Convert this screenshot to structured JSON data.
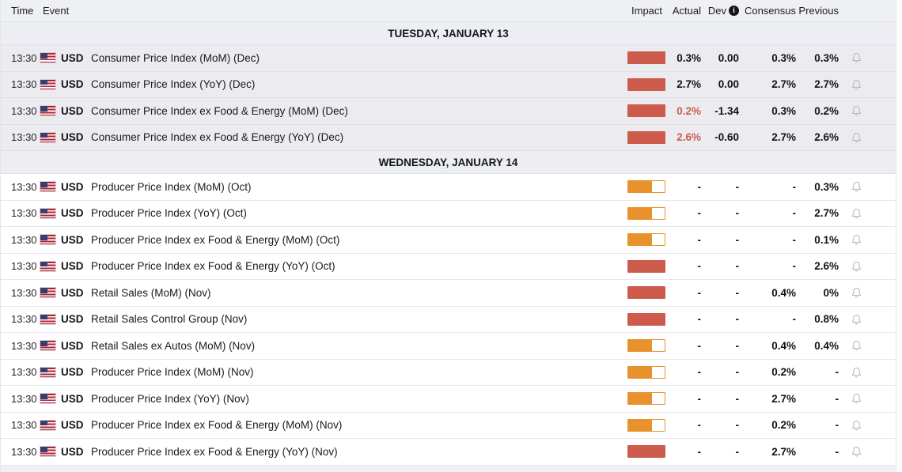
{
  "header": {
    "time": "Time",
    "event": "Event",
    "impact": "Impact",
    "actual": "Actual",
    "dev": "Dev",
    "consensus": "Consensus",
    "previous": "Previous",
    "info_icon": "i"
  },
  "colors": {
    "impact_high": "#cd5b4c",
    "impact_medium": "#e8922d",
    "deviation_text": "#cb5f50",
    "past_row_bg": "#ebebf0",
    "date_row_bg": "#edeef4",
    "header_bg": "#eff0f3"
  },
  "icons": {
    "flag": "us-flag-icon",
    "bell": "bell-icon",
    "info": "info-icon"
  },
  "sections": [
    {
      "date_label": "TUESDAY, JANUARY 13",
      "past": true,
      "rows": [
        {
          "time": "13:30",
          "currency": "USD",
          "event": "Consumer Price Index (MoM) (Dec)",
          "impact": "high",
          "actual": "0.3%",
          "actual_highlight": false,
          "dev": "0.00",
          "consensus": "0.3%",
          "previous": "0.3%"
        },
        {
          "time": "13:30",
          "currency": "USD",
          "event": "Consumer Price Index (YoY) (Dec)",
          "impact": "high",
          "actual": "2.7%",
          "actual_highlight": false,
          "dev": "0.00",
          "consensus": "2.7%",
          "previous": "2.7%"
        },
        {
          "time": "13:30",
          "currency": "USD",
          "event": "Consumer Price Index ex Food & Energy (MoM) (Dec)",
          "impact": "high",
          "actual": "0.2%",
          "actual_highlight": true,
          "dev": "-1.34",
          "consensus": "0.3%",
          "previous": "0.2%"
        },
        {
          "time": "13:30",
          "currency": "USD",
          "event": "Consumer Price Index ex Food & Energy (YoY) (Dec)",
          "impact": "high",
          "actual": "2.6%",
          "actual_highlight": true,
          "dev": "-0.60",
          "consensus": "2.7%",
          "previous": "2.6%"
        }
      ]
    },
    {
      "date_label": "WEDNESDAY, JANUARY 14",
      "past": false,
      "rows": [
        {
          "time": "13:30",
          "currency": "USD",
          "event": "Producer Price Index (MoM) (Oct)",
          "impact": "medium",
          "actual": "-",
          "actual_highlight": false,
          "dev": "-",
          "consensus": "-",
          "previous": "0.3%"
        },
        {
          "time": "13:30",
          "currency": "USD",
          "event": "Producer Price Index (YoY) (Oct)",
          "impact": "medium",
          "actual": "-",
          "actual_highlight": false,
          "dev": "-",
          "consensus": "-",
          "previous": "2.7%"
        },
        {
          "time": "13:30",
          "currency": "USD",
          "event": "Producer Price Index ex Food & Energy (MoM) (Oct)",
          "impact": "medium",
          "actual": "-",
          "actual_highlight": false,
          "dev": "-",
          "consensus": "-",
          "previous": "0.1%"
        },
        {
          "time": "13:30",
          "currency": "USD",
          "event": "Producer Price Index ex Food & Energy (YoY) (Oct)",
          "impact": "high",
          "actual": "-",
          "actual_highlight": false,
          "dev": "-",
          "consensus": "-",
          "previous": "2.6%"
        },
        {
          "time": "13:30",
          "currency": "USD",
          "event": "Retail Sales (MoM) (Nov)",
          "impact": "high",
          "actual": "-",
          "actual_highlight": false,
          "dev": "-",
          "consensus": "0.4%",
          "previous": "0%"
        },
        {
          "time": "13:30",
          "currency": "USD",
          "event": "Retail Sales Control Group (Nov)",
          "impact": "high",
          "actual": "-",
          "actual_highlight": false,
          "dev": "-",
          "consensus": "-",
          "previous": "0.8%"
        },
        {
          "time": "13:30",
          "currency": "USD",
          "event": "Retail Sales ex Autos (MoM) (Nov)",
          "impact": "medium",
          "actual": "-",
          "actual_highlight": false,
          "dev": "-",
          "consensus": "0.4%",
          "previous": "0.4%"
        },
        {
          "time": "13:30",
          "currency": "USD",
          "event": "Producer Price Index (MoM) (Nov)",
          "impact": "medium",
          "actual": "-",
          "actual_highlight": false,
          "dev": "-",
          "consensus": "0.2%",
          "previous": "-"
        },
        {
          "time": "13:30",
          "currency": "USD",
          "event": "Producer Price Index (YoY) (Nov)",
          "impact": "medium",
          "actual": "-",
          "actual_highlight": false,
          "dev": "-",
          "consensus": "2.7%",
          "previous": "-"
        },
        {
          "time": "13:30",
          "currency": "USD",
          "event": "Producer Price Index ex Food & Energy (MoM) (Nov)",
          "impact": "medium",
          "actual": "-",
          "actual_highlight": false,
          "dev": "-",
          "consensus": "0.2%",
          "previous": "-"
        },
        {
          "time": "13:30",
          "currency": "USD",
          "event": "Producer Price Index ex Food & Energy (YoY) (Nov)",
          "impact": "high",
          "actual": "-",
          "actual_highlight": false,
          "dev": "-",
          "consensus": "2.7%",
          "previous": "-"
        }
      ]
    }
  ]
}
